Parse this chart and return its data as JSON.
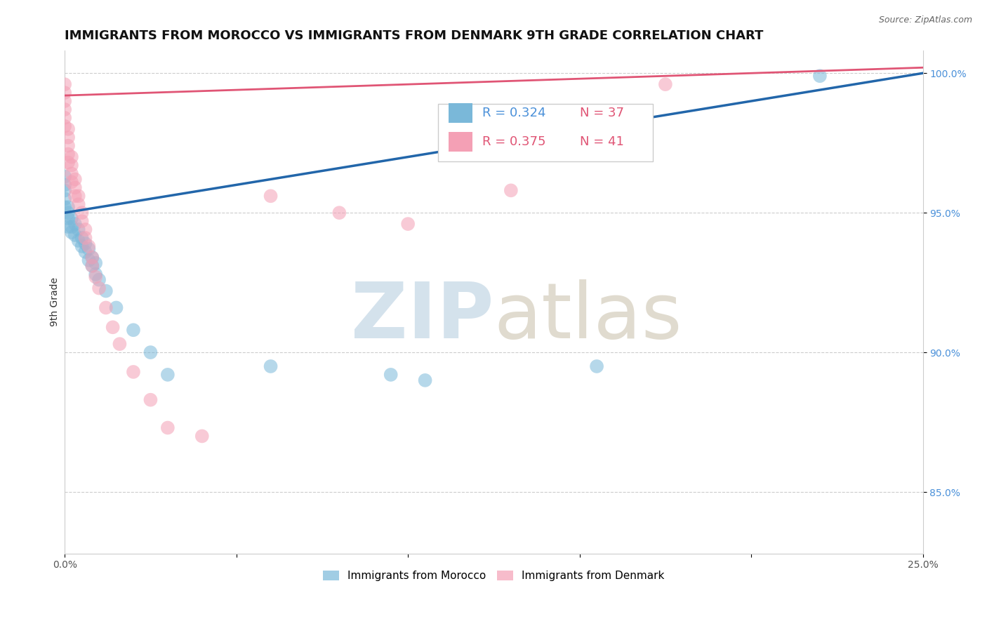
{
  "title": "IMMIGRANTS FROM MOROCCO VS IMMIGRANTS FROM DENMARK 9TH GRADE CORRELATION CHART",
  "source": "Source: ZipAtlas.com",
  "ylabel": "9th Grade",
  "xlim": [
    0.0,
    0.25
  ],
  "ylim": [
    0.828,
    1.008
  ],
  "morocco_color": "#7ab8d9",
  "denmark_color": "#f4a0b5",
  "morocco_line_color": "#2266aa",
  "denmark_line_color": "#e05575",
  "morocco_R": 0.324,
  "morocco_N": 37,
  "denmark_R": 0.375,
  "denmark_N": 41,
  "background_color": "#ffffff",
  "grid_color": "#cccccc",
  "title_fontsize": 13,
  "axis_label_fontsize": 10,
  "tick_fontsize": 10,
  "legend_fontsize": 12,
  "morocco_x": [
    0.0,
    0.0,
    0.0,
    0.0,
    0.0,
    0.001,
    0.001,
    0.001,
    0.001,
    0.002,
    0.002,
    0.002,
    0.003,
    0.003,
    0.004,
    0.004,
    0.005,
    0.005,
    0.006,
    0.006,
    0.007,
    0.007,
    0.008,
    0.008,
    0.009,
    0.009,
    0.01,
    0.012,
    0.015,
    0.02,
    0.025,
    0.03,
    0.06,
    0.095,
    0.105,
    0.155,
    0.22
  ],
  "morocco_y": [
    0.96,
    0.963,
    0.955,
    0.958,
    0.952,
    0.952,
    0.948,
    0.945,
    0.95,
    0.948,
    0.945,
    0.943,
    0.942,
    0.946,
    0.94,
    0.944,
    0.938,
    0.941,
    0.936,
    0.939,
    0.933,
    0.937,
    0.931,
    0.934,
    0.928,
    0.932,
    0.926,
    0.922,
    0.916,
    0.908,
    0.9,
    0.892,
    0.895,
    0.892,
    0.89,
    0.895,
    0.999
  ],
  "denmark_x": [
    0.0,
    0.0,
    0.0,
    0.0,
    0.0,
    0.0,
    0.001,
    0.001,
    0.001,
    0.001,
    0.001,
    0.002,
    0.002,
    0.002,
    0.002,
    0.003,
    0.003,
    0.003,
    0.004,
    0.004,
    0.005,
    0.005,
    0.006,
    0.006,
    0.007,
    0.008,
    0.008,
    0.009,
    0.01,
    0.012,
    0.014,
    0.016,
    0.02,
    0.025,
    0.03,
    0.04,
    0.06,
    0.08,
    0.1,
    0.13,
    0.175
  ],
  "denmark_y": [
    0.996,
    0.993,
    0.99,
    0.987,
    0.984,
    0.981,
    0.98,
    0.977,
    0.974,
    0.971,
    0.968,
    0.97,
    0.967,
    0.964,
    0.961,
    0.962,
    0.959,
    0.956,
    0.956,
    0.953,
    0.95,
    0.947,
    0.944,
    0.941,
    0.938,
    0.934,
    0.931,
    0.927,
    0.923,
    0.916,
    0.909,
    0.903,
    0.893,
    0.883,
    0.873,
    0.87,
    0.956,
    0.95,
    0.946,
    0.958,
    0.996
  ]
}
